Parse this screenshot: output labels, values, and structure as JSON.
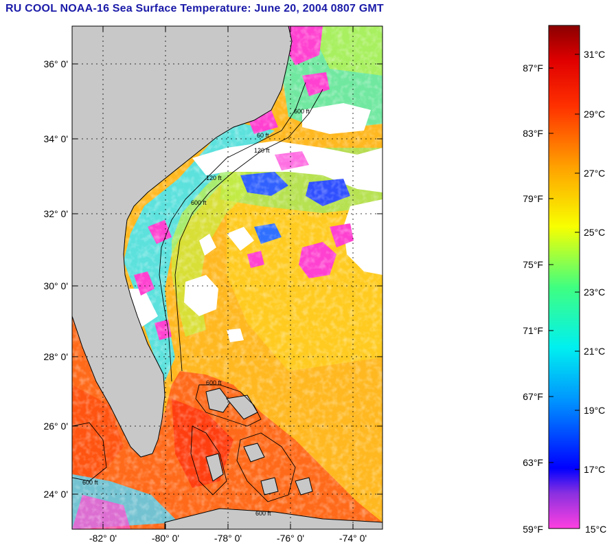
{
  "title": "RU COOL  NOAA-16  Sea Surface Temperature:  June 20, 2004 0807 GMT",
  "colors": {
    "land": "#c8c8c8",
    "cloud": "#ffffff",
    "title_text": "#1a1aa8",
    "gulf_stream": "#ff6a1a",
    "open_ocean": "#ffb820",
    "shelf_cool": "#40e8ff",
    "cold_patch": "#ff40d0"
  },
  "map": {
    "lat_labels": [
      "36° 0'",
      "34° 0'",
      "32° 0'",
      "30° 0'",
      "28° 0'",
      "26° 0'",
      "24° 0'"
    ],
    "lon_labels": [
      "-82° 0'",
      "-80° 0'",
      "-78° 0'",
      "-76° 0'",
      "-74° 0'"
    ],
    "contour_labels": [
      "60 ft",
      "120 ft",
      "600 ft",
      "600 ft",
      "120 ft",
      "600 ft",
      "600 ft",
      "600 ft"
    ]
  },
  "colorbar": {
    "f_labels": [
      "87°F",
      "83°F",
      "79°F",
      "75°F",
      "71°F",
      "67°F",
      "63°F",
      "59°F"
    ],
    "c_labels": [
      "31°C",
      "29°C",
      "27°C",
      "25°C",
      "23°C",
      "21°C",
      "19°C",
      "17°C",
      "15°C"
    ]
  }
}
